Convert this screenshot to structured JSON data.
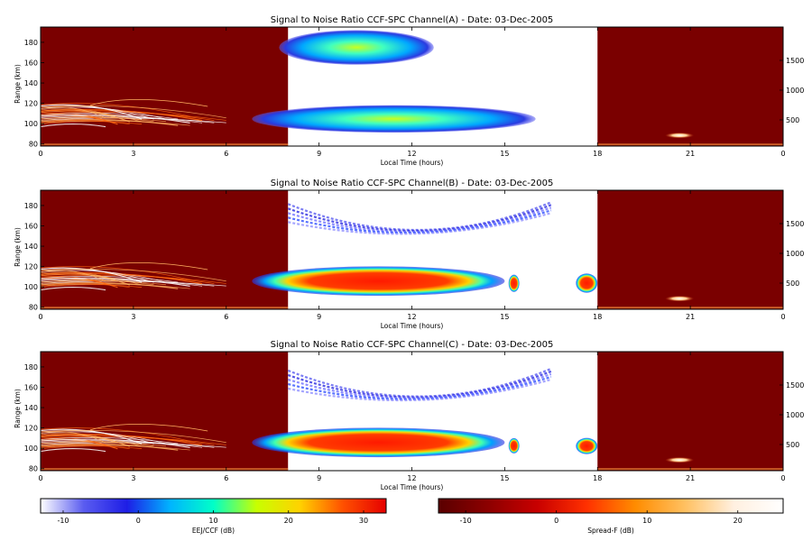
{
  "chart_data": {
    "type": "heatmap",
    "shared": {
      "xlabel": "Local Time (hours)",
      "ylabel_left": "Range (km)",
      "x_range_hours": [
        0,
        24
      ],
      "x_tick_labels": [
        "0",
        "3",
        "6",
        "9",
        "12",
        "15",
        "18",
        "21",
        "0"
      ],
      "y_left_range_km": [
        78,
        195
      ],
      "y_left_ticks": [
        "80",
        "100",
        "120",
        "140",
        "160",
        "180"
      ],
      "y_right_ticks": [
        "500",
        "1000",
        "1500"
      ],
      "day_window_hours": [
        8,
        18
      ],
      "night_background": "#7a0000",
      "day_background": "#ffffff"
    },
    "panels": [
      {
        "id": "A",
        "title": "Signal to Noise Ratio CCF-SPC Channel(A) - Date: 03-Dec-2005",
        "day_echoes": [
          {
            "x": [
              8,
              13
            ],
            "y": [
              158,
              192
            ],
            "snr_db": [
              -8,
              12
            ],
            "kind": "upper layer"
          },
          {
            "x": [
              8,
              16
            ],
            "y": [
              93,
              120
            ],
            "snr_db": [
              -8,
              18
            ],
            "kind": "EEJ"
          }
        ],
        "night_echoes": [
          {
            "x": [
              0,
              6
            ],
            "y": [
              95,
              130
            ],
            "kind": "spread-F streaks"
          },
          {
            "x": [
              20.3,
              21
            ],
            "y": [
              85,
              92
            ],
            "kind": "spread-F patch"
          }
        ]
      },
      {
        "id": "B",
        "title": "Signal to Noise Ratio CCF-SPC Channel(B) - Date: 03-Dec-2005",
        "day_echoes": [
          {
            "x": [
              8,
              16.5
            ],
            "y": [
              135,
              185
            ],
            "snr_db": [
              -12,
              0
            ],
            "kind": "upper arc"
          },
          {
            "x": [
              8,
              15
            ],
            "y": [
              93,
              122
            ],
            "snr_db": [
              0,
              32
            ],
            "kind": "EEJ"
          },
          {
            "x": [
              15.2,
              15.4
            ],
            "y": [
              95,
              112
            ],
            "snr_db": [
              10,
              30
            ],
            "kind": "EEJ blob"
          },
          {
            "x": [
              17.3,
              18
            ],
            "y": [
              96,
              115
            ],
            "snr_db": [
              5,
              30
            ],
            "kind": "EEJ"
          }
        ],
        "night_echoes": [
          {
            "x": [
              0,
              6
            ],
            "y": [
              95,
              130
            ],
            "kind": "spread-F streaks"
          },
          {
            "x": [
              20.3,
              21
            ],
            "y": [
              85,
              92
            ],
            "kind": "spread-F patch"
          }
        ]
      },
      {
        "id": "C",
        "title": "Signal to Noise Ratio CCF-SPC Channel(C) - Date: 03-Dec-2005",
        "day_echoes": [
          {
            "x": [
              8,
              16.5
            ],
            "y": [
              130,
              180
            ],
            "snr_db": [
              -12,
              0
            ],
            "kind": "upper arc"
          },
          {
            "x": [
              8,
              15
            ],
            "y": [
              93,
              122
            ],
            "snr_db": [
              0,
              25
            ],
            "kind": "EEJ"
          },
          {
            "x": [
              15.2,
              15.4
            ],
            "y": [
              95,
              110
            ],
            "snr_db": [
              10,
              25
            ],
            "kind": "EEJ blob"
          },
          {
            "x": [
              17.3,
              18
            ],
            "y": [
              96,
              112
            ],
            "snr_db": [
              5,
              25
            ],
            "kind": "EEJ"
          }
        ],
        "night_echoes": [
          {
            "x": [
              0,
              6
            ],
            "y": [
              95,
              130
            ],
            "kind": "spread-F streaks"
          },
          {
            "x": [
              20.3,
              21
            ],
            "y": [
              85,
              92
            ],
            "kind": "spread-F patch"
          }
        ]
      }
    ],
    "colorbars": [
      {
        "label": "EEJ/CCF (dB)",
        "range": [
          -13,
          33
        ],
        "ticks": [
          "-10",
          "0",
          "10",
          "20",
          "30"
        ],
        "tick_values": [
          -10,
          0,
          10,
          20,
          30
        ],
        "stops": [
          "#ffffff",
          "#5a5cf0",
          "#1e1ee6",
          "#00b4ff",
          "#00ffc8",
          "#c8ff00",
          "#ffd200",
          "#ff5000",
          "#e60000"
        ]
      },
      {
        "label": "Spread-F (dB)",
        "range": [
          -13,
          25
        ],
        "ticks": [
          "-10",
          "0",
          "10",
          "20"
        ],
        "tick_values": [
          -10,
          0,
          10,
          20
        ],
        "stops": [
          "#5a0000",
          "#8c0000",
          "#c80000",
          "#ff3000",
          "#ff8c00",
          "#ffc060",
          "#fff0e0",
          "#ffffff"
        ]
      }
    ]
  }
}
